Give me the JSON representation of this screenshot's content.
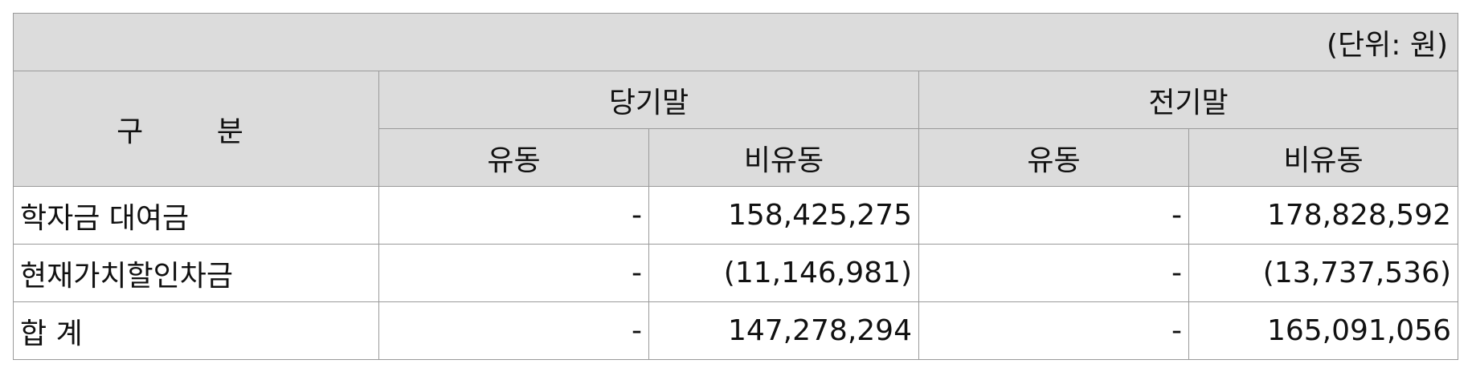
{
  "unit_label": "(단위: 원)",
  "header": {
    "category": "구 분",
    "period_current": "당기말",
    "period_prior": "전기말",
    "current_label": "유동",
    "noncurrent_label": "비유동"
  },
  "rows": [
    {
      "label": "학자금 대여금",
      "cur_current": "-",
      "cur_noncurrent": "158,425,275",
      "prior_current": "-",
      "prior_noncurrent": "178,828,592"
    },
    {
      "label": "현재가치할인차금",
      "cur_current": "-",
      "cur_noncurrent": "(11,146,981)",
      "prior_current": "-",
      "prior_noncurrent": "(13,737,536)"
    },
    {
      "label": "합 계",
      "cur_current": "-",
      "cur_noncurrent": "147,278,294",
      "prior_current": "-",
      "prior_noncurrent": "165,091,056"
    }
  ]
}
